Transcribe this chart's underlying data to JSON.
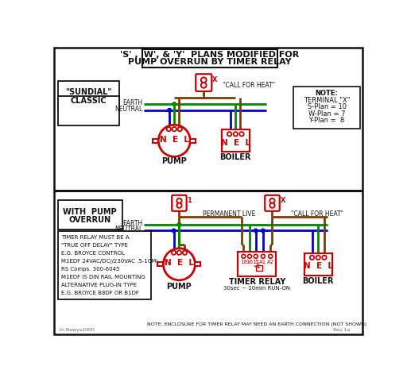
{
  "title_line1": "'S' , 'W', & 'Y'  PLANS MODIFIED FOR",
  "title_line2": "PUMP OVERRUN BY TIMER RELAY",
  "bg_color": "#ffffff",
  "red": "#cc0000",
  "green": "#008800",
  "blue": "#0000cc",
  "brown": "#7B3F00",
  "black": "#111111",
  "gray": "#666666",
  "sundial_label": "\"SUNDIAL\"\nCLASSIC",
  "pump_overrun_label": "WITH  PUMP\nOVERRUN",
  "note_text": [
    "NOTE:",
    "TERMINAL \"X\"",
    "S-Plan = 10",
    "W-Plan = 7",
    "Y-Plan =  8"
  ],
  "timer_note": [
    "TIMER RELAY MUST BE A",
    "\"TRUE OFF DELAY\" TYPE",
    "E.G. BROYCE CONTROL",
    "M1EDF 24VAC/DC//230VAC .5-10MI",
    "RS Comps. 300-6045",
    "M1EDF IS DIN RAIL MOUNTING",
    "ALTERNATIVE PLUG-IN TYPE",
    "E.G. BROYCE B8DF OR B1DF"
  ],
  "bottom_note": "NOTE: ENCLOSURE FOR TIMER RELAY MAY NEED AN EARTH CONNECTION (NOT SHOWN)"
}
